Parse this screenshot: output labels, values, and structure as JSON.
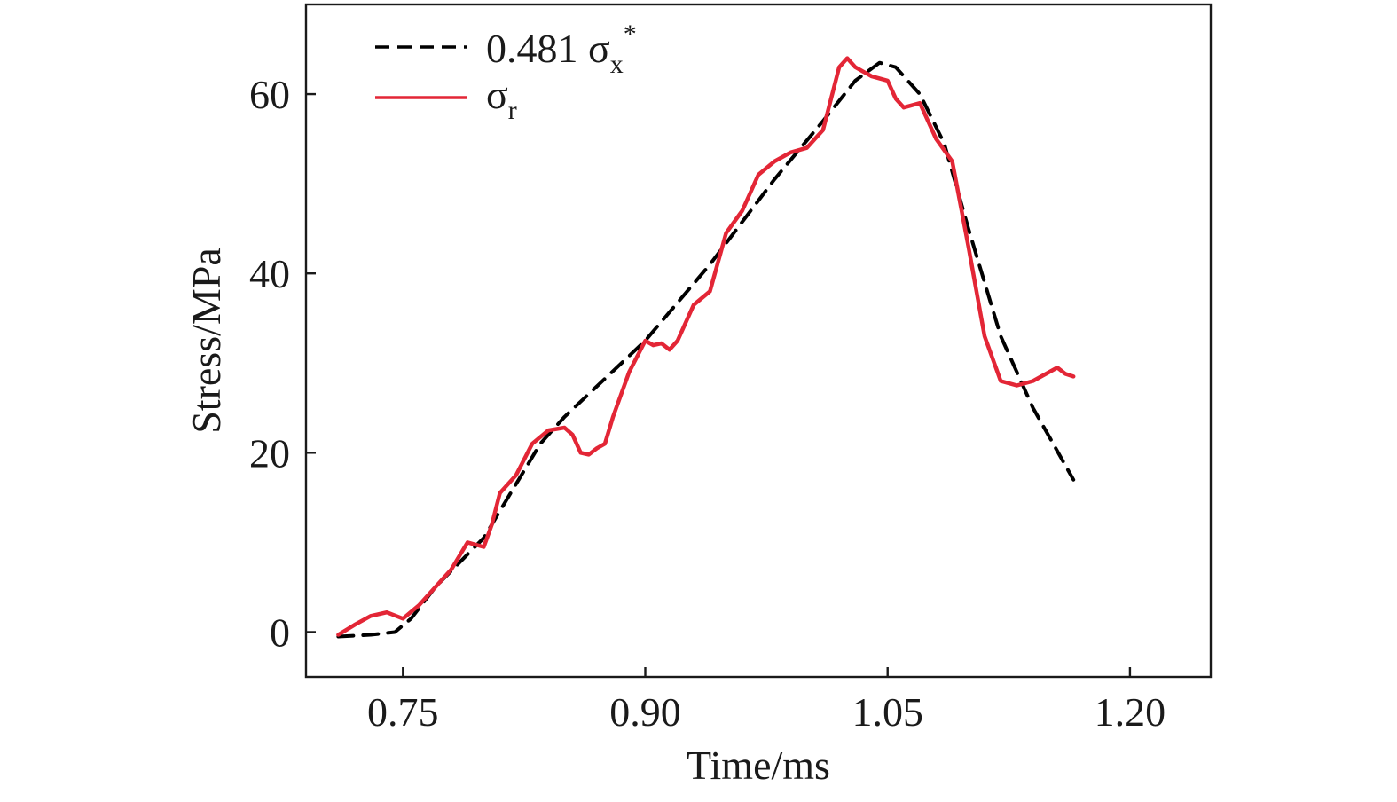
{
  "chart_data": {
    "type": "line",
    "title": "",
    "xlabel": "Time/ms",
    "ylabel": "Stress/MPa",
    "xlim": [
      0.69,
      1.25
    ],
    "ylim": [
      -5,
      70
    ],
    "xticks": [
      "0.75",
      "0.90",
      "1.05",
      "1.20"
    ],
    "xtick_values": [
      0.75,
      0.9,
      1.05,
      1.2
    ],
    "yticks": [
      "0",
      "20",
      "40",
      "60"
    ],
    "ytick_values": [
      0,
      20,
      40,
      60
    ],
    "grid": false,
    "legend_position": "top-left",
    "series": [
      {
        "name": "0.481 σx*",
        "legend": {
          "base": "0.481 σ",
          "sub": "x",
          "sup": "*"
        },
        "style": "dashed",
        "color": "#000000",
        "x": [
          0.71,
          0.73,
          0.745,
          0.755,
          0.77,
          0.8,
          0.835,
          0.85,
          0.9,
          0.94,
          0.98,
          1.01,
          1.03,
          1.045,
          1.055,
          1.07,
          1.085,
          1.1,
          1.12,
          1.14,
          1.165
        ],
        "y": [
          -0.5,
          -0.3,
          0.0,
          1.5,
          5.0,
          10.5,
          21.0,
          24.0,
          32.5,
          41.0,
          50.5,
          57.0,
          61.5,
          63.5,
          63.0,
          60.0,
          54.5,
          45.0,
          33.0,
          25.0,
          17.0
        ]
      },
      {
        "name": "σr",
        "legend": {
          "base": "σ",
          "sub": "r",
          "sup": ""
        },
        "style": "solid",
        "color": "#e32636",
        "x": [
          0.71,
          0.72,
          0.73,
          0.74,
          0.75,
          0.76,
          0.77,
          0.78,
          0.79,
          0.8,
          0.805,
          0.81,
          0.82,
          0.83,
          0.84,
          0.85,
          0.855,
          0.86,
          0.865,
          0.87,
          0.875,
          0.88,
          0.89,
          0.9,
          0.905,
          0.91,
          0.915,
          0.92,
          0.93,
          0.94,
          0.95,
          0.96,
          0.97,
          0.98,
          0.99,
          1.0,
          1.005,
          1.01,
          1.02,
          1.025,
          1.03,
          1.035,
          1.04,
          1.05,
          1.055,
          1.06,
          1.07,
          1.08,
          1.09,
          1.1,
          1.11,
          1.12,
          1.13,
          1.14,
          1.145,
          1.15,
          1.155,
          1.16,
          1.165
        ],
        "y": [
          -0.3,
          0.8,
          1.8,
          2.2,
          1.5,
          3.0,
          5.0,
          7.0,
          10.0,
          9.5,
          12.0,
          15.5,
          17.5,
          21.0,
          22.5,
          22.8,
          22.0,
          20.0,
          19.8,
          20.5,
          21.0,
          24.0,
          29.0,
          32.5,
          32.0,
          32.2,
          31.5,
          32.5,
          36.5,
          38.0,
          44.5,
          47.0,
          51.0,
          52.5,
          53.5,
          54.0,
          55.0,
          56.0,
          63.0,
          64.0,
          63.0,
          62.5,
          62.0,
          61.5,
          59.5,
          58.5,
          59.0,
          55.0,
          52.5,
          43.0,
          33.0,
          28.0,
          27.5,
          28.0,
          28.5,
          29.0,
          29.5,
          28.8,
          28.5
        ]
      }
    ]
  }
}
